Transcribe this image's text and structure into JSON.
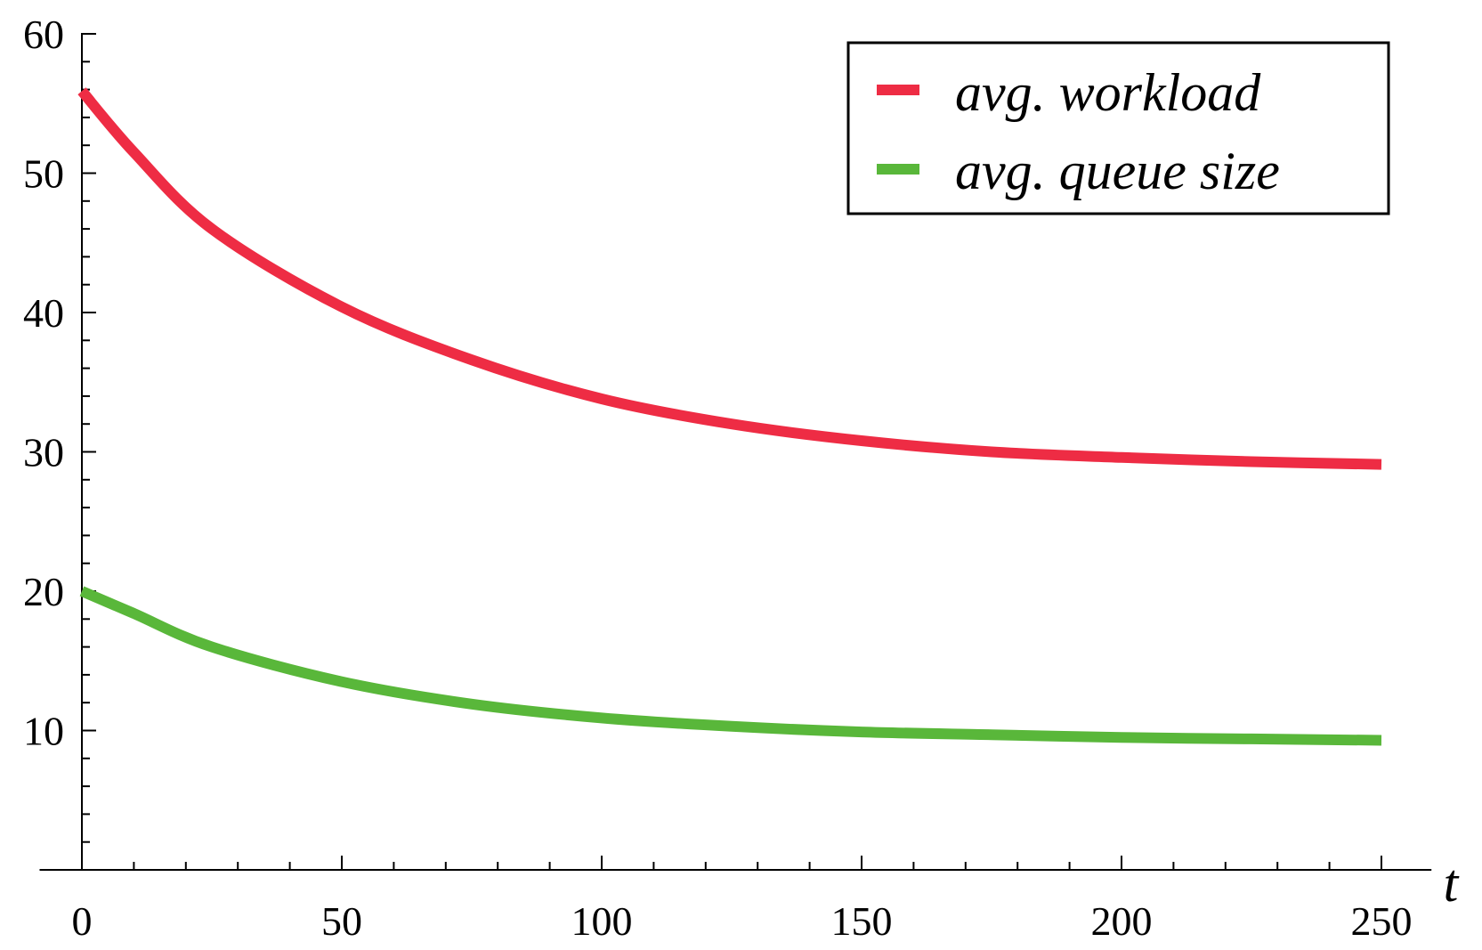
{
  "chart_data": {
    "type": "line",
    "title": "",
    "xlabel": "t",
    "ylabel": "",
    "xlim": [
      -3,
      255
    ],
    "ylim": [
      0,
      60
    ],
    "x_ticks": [
      0,
      50,
      100,
      150,
      200,
      250
    ],
    "y_ticks": [
      10,
      20,
      30,
      40,
      50,
      60
    ],
    "grid": false,
    "legend_position": "top-right",
    "x": [
      0,
      10,
      25,
      50,
      75,
      100,
      125,
      150,
      175,
      200,
      225,
      250
    ],
    "series": [
      {
        "name": "avg. workload",
        "color": "#ee2c44",
        "values": [
          55.9,
          51.5,
          46.0,
          40.4,
          36.6,
          33.8,
          32.0,
          30.8,
          30.0,
          29.6,
          29.3,
          29.1
        ]
      },
      {
        "name": "avg. queue size",
        "color": "#59b73a",
        "values": [
          20.0,
          18.4,
          16.0,
          13.5,
          11.9,
          10.9,
          10.3,
          9.9,
          9.7,
          9.5,
          9.4,
          9.3
        ]
      }
    ]
  }
}
